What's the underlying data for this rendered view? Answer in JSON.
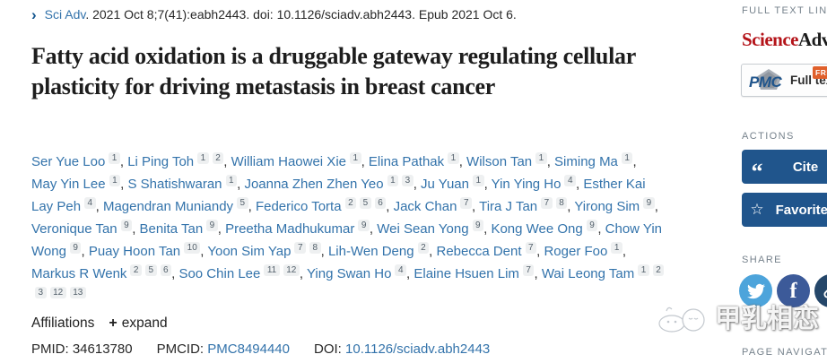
{
  "citation": {
    "journal": "Sci Adv",
    "rest": ". 2021 Oct 8;7(41):eabh2443. doi: 10.1126/sciadv.abh2443. Epub 2021 Oct 6."
  },
  "title": "Fatty acid oxidation is a druggable gateway regulating cellular plasticity for driving metastasis in breast cancer",
  "authors": [
    {
      "name": "Ser Yue Loo",
      "sups": [
        "1"
      ]
    },
    {
      "name": "Li Ping Toh",
      "sups": [
        "1",
        "2"
      ]
    },
    {
      "name": "William Haowei Xie",
      "sups": [
        "1"
      ]
    },
    {
      "name": "Elina Pathak",
      "sups": [
        "1"
      ]
    },
    {
      "name": "Wilson Tan",
      "sups": [
        "1"
      ]
    },
    {
      "name": "Siming Ma",
      "sups": [
        "1"
      ]
    },
    {
      "name": "May Yin Lee",
      "sups": [
        "1"
      ]
    },
    {
      "name": "S Shatishwaran",
      "sups": [
        "1"
      ]
    },
    {
      "name": "Joanna Zhen Zhen Yeo",
      "sups": [
        "1",
        "3"
      ]
    },
    {
      "name": "Ju Yuan",
      "sups": [
        "1"
      ]
    },
    {
      "name": "Yin Ying Ho",
      "sups": [
        "4"
      ]
    },
    {
      "name": "Esther Kai Lay Peh",
      "sups": [
        "4"
      ]
    },
    {
      "name": "Magendran Muniandy",
      "sups": [
        "5"
      ]
    },
    {
      "name": "Federico Torta",
      "sups": [
        "2",
        "5",
        "6"
      ]
    },
    {
      "name": "Jack Chan",
      "sups": [
        "7"
      ]
    },
    {
      "name": "Tira J Tan",
      "sups": [
        "7",
        "8"
      ]
    },
    {
      "name": "Yirong Sim",
      "sups": [
        "9"
      ]
    },
    {
      "name": "Veronique Tan",
      "sups": [
        "9"
      ]
    },
    {
      "name": "Benita Tan",
      "sups": [
        "9"
      ]
    },
    {
      "name": "Preetha Madhukumar",
      "sups": [
        "9"
      ]
    },
    {
      "name": "Wei Sean Yong",
      "sups": [
        "9"
      ]
    },
    {
      "name": "Kong Wee Ong",
      "sups": [
        "9"
      ]
    },
    {
      "name": "Chow Yin Wong",
      "sups": [
        "9"
      ]
    },
    {
      "name": "Puay Hoon Tan",
      "sups": [
        "10"
      ]
    },
    {
      "name": "Yoon Sim Yap",
      "sups": [
        "7",
        "8"
      ]
    },
    {
      "name": "Lih-Wen Deng",
      "sups": [
        "2"
      ]
    },
    {
      "name": "Rebecca Dent",
      "sups": [
        "7"
      ]
    },
    {
      "name": "Roger Foo",
      "sups": [
        "1"
      ]
    },
    {
      "name": "Markus R Wenk",
      "sups": [
        "2",
        "5",
        "6"
      ]
    },
    {
      "name": "Soo Chin Lee",
      "sups": [
        "11",
        "12"
      ]
    },
    {
      "name": "Ying Swan Ho",
      "sups": [
        "4"
      ]
    },
    {
      "name": "Elaine Hsuen Lim",
      "sups": [
        "7"
      ]
    },
    {
      "name": "Wai Leong Tam",
      "sups": [
        "1",
        "2",
        "3",
        "12",
        "13"
      ]
    }
  ],
  "affiliations": {
    "label": "Affiliations",
    "plus": "+",
    "expand_label": "expand"
  },
  "identifiers": {
    "pmid_label": "PMID:",
    "pmid": "34613780",
    "pmcid_label": "PMCID:",
    "pmcid": "PMC8494440",
    "doi_label": "DOI:",
    "doi": "10.1126/sciadv.abh2443"
  },
  "sidebar": {
    "full_text_links_label": "FULL TEXT LINKS",
    "journal_logo": {
      "part1": "Science",
      "part2": "Advances"
    },
    "pmc_button": {
      "logo": "PMC",
      "label": "Full text",
      "badge": "FREE"
    },
    "actions_label": "ACTIONS",
    "cite_label": "Cite",
    "favorites_label": "Favorites",
    "share_label": "SHARE",
    "page_navigation_label": "PAGE NAVIGATION"
  },
  "watermark": {
    "text": "甲乳相恋"
  },
  "colors": {
    "link-blue": "#3373ab",
    "btn-blue": "#20558c",
    "science-red": "#b41319",
    "twitter": "#4da4db",
    "facebook": "#3c5a99",
    "permalink": "#25476a",
    "badge-orange": "#e0602b",
    "side-gray": "#76828c"
  }
}
